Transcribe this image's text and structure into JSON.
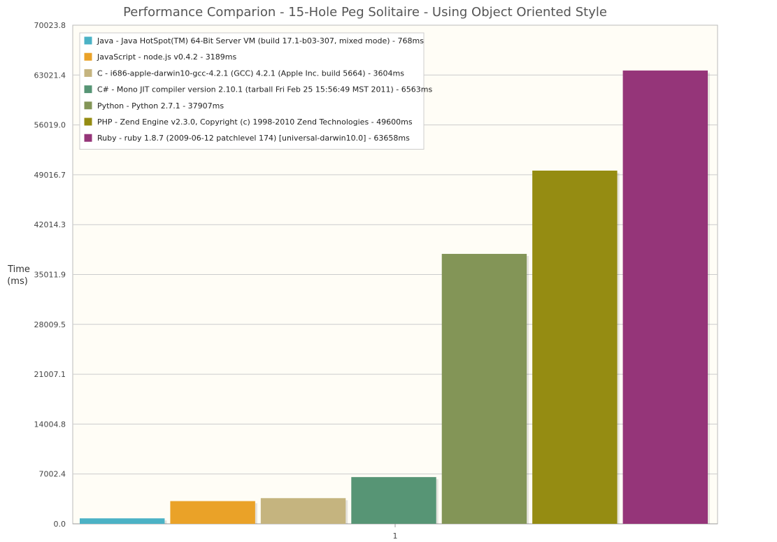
{
  "chart_data": {
    "type": "bar",
    "title": "Performance Comparion - 15-Hole Peg Solitaire - Using Object Oriented Style",
    "ylabel_lines": [
      "Time",
      "(ms)"
    ],
    "xlabel": "",
    "categories": [
      "1"
    ],
    "ylim": [
      0,
      70023.8
    ],
    "yticks": [
      "0.0",
      "7002.4",
      "14004.8",
      "21007.1",
      "28009.5",
      "35011.9",
      "42014.3",
      "49016.7",
      "56019.0",
      "63021.4",
      "70023.8"
    ],
    "grid": true,
    "legend_position": "top-left",
    "series": [
      {
        "name": "Java - Java HotSpot(TM) 64-Bit Server VM (build 17.1-b03-307, mixed mode) - 768ms",
        "value": 768,
        "color": "#4bb2c5"
      },
      {
        "name": "JavaScript - node.js v0.4.2 - 3189ms",
        "value": 3189,
        "color": "#eaa228"
      },
      {
        "name": "C - i686-apple-darwin10-gcc-4.2.1 (GCC) 4.2.1 (Apple Inc. build 5664) - 3604ms",
        "value": 3604,
        "color": "#c5b47f"
      },
      {
        "name": "C# - Mono JIT compiler version 2.10.1 (tarball Fri Feb 25 15:56:49 MST 2011) - 6563ms",
        "value": 6563,
        "color": "#579575"
      },
      {
        "name": "Python - Python 2.7.1 - 37907ms",
        "value": 37907,
        "color": "#839557"
      },
      {
        "name": "PHP - Zend Engine v2.3.0, Copyright (c) 1998-2010 Zend Technologies - 49600ms",
        "value": 49600,
        "color": "#958c12"
      },
      {
        "name": "Ruby - ruby 1.8.7 (2009-06-12 patchlevel 174) [universal-darwin10.0] - 63658ms",
        "value": 63658,
        "color": "#953579"
      }
    ],
    "plot_background": "#fffdf6",
    "grid_color": "#cccccc"
  }
}
